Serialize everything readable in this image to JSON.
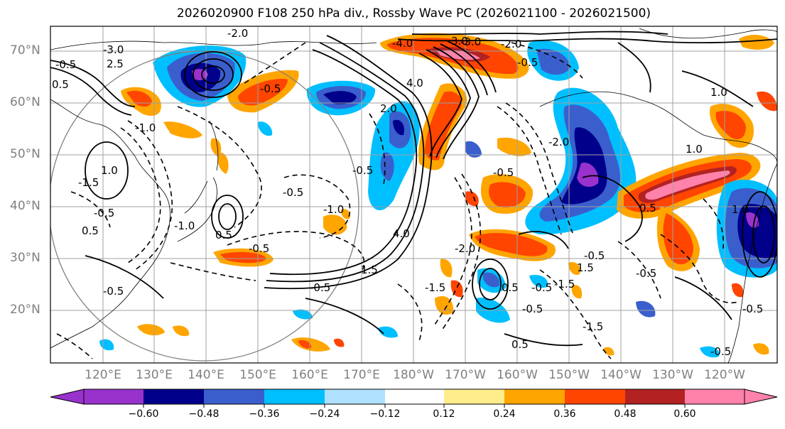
{
  "title": "2026020900 F108 250 hPa div., Rossby Wave PC (2026021100 - 2026021500)",
  "lat_labels": [
    "70°N",
    "60°N",
    "50°N",
    "40°N",
    "30°N",
    "20°N"
  ],
  "lon_labels": [
    "120°E",
    "130°E",
    "140°E",
    "150°E",
    "160°E",
    "170°E",
    "180°W",
    "170°W",
    "160°W",
    "150°W",
    "140°W",
    "130°W",
    "120°W"
  ],
  "colorbar": {
    "colors": [
      "#9932cc",
      "#00008b",
      "#3a5fcd",
      "#00bfff",
      "#b0e2ff",
      "#ffffff",
      "#ffec8b",
      "#ffa500",
      "#ff4500",
      "#b22222",
      "#ff82ab"
    ],
    "tick_labels": [
      "−0.60",
      "−0.48",
      "−0.36",
      "−0.24",
      "−0.12",
      "0.12",
      "0.24",
      "0.36",
      "0.48",
      "0.60"
    ]
  },
  "contour_labels": [
    "-3.0",
    "-2.0",
    "-0.5",
    "2.5",
    "3.0",
    "-4.0",
    "-3.0",
    "-2.0",
    "0.5",
    "-0.5",
    "1.0",
    "-1.0",
    "-0.5",
    "4.0",
    "2.0",
    "-2.0",
    "-0.5",
    "-1.0",
    "-0.5",
    "-1.5",
    "-0.5",
    "0.5",
    "-0.5",
    "0.5",
    "-1.0",
    "1.0",
    "-0.5",
    "-0.5",
    "4.0",
    "-1.5",
    "-2.0",
    "-0.5",
    "1.5",
    "-1.5",
    "-0.5",
    "-0.5",
    "0.5",
    "1.0",
    "-0.5",
    "-0.5",
    "1.0",
    "0.5",
    "-0.5",
    "1.5",
    "-0.5",
    "-1.5",
    "0.5"
  ]
}
